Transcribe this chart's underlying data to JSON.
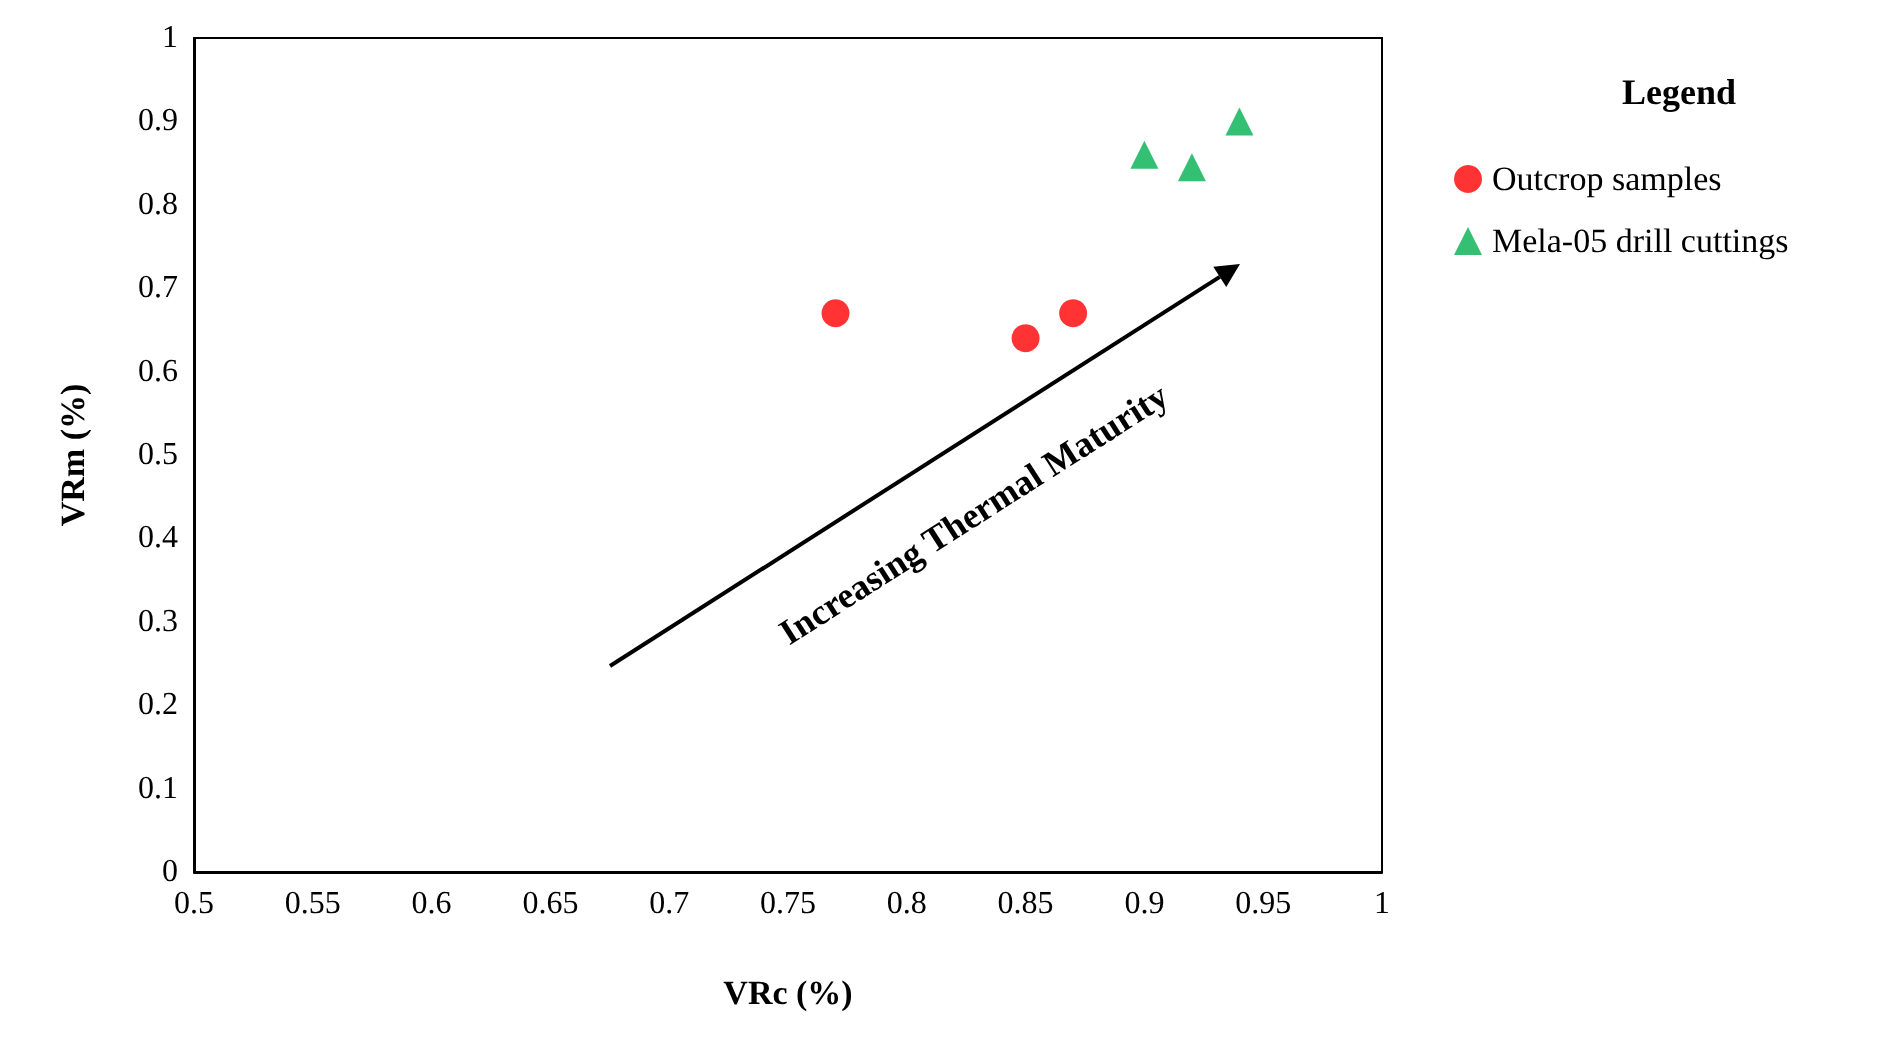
{
  "chart_data": {
    "type": "scatter",
    "xlabel": "VRc (%)",
    "ylabel": "VRm (%)",
    "legend_title": "Legend",
    "legend": "right",
    "grid": false,
    "xlim": [
      0.5,
      1
    ],
    "xticks": [
      0.5,
      0.55,
      0.6,
      0.65,
      0.7,
      0.75,
      0.8,
      0.85,
      0.9,
      0.95,
      1
    ],
    "ylim": [
      0,
      1
    ],
    "yticks": [
      0,
      0.1,
      0.2,
      0.3,
      0.4,
      0.5,
      0.6,
      0.7,
      0.8,
      0.9,
      1
    ],
    "annotations": [
      "Increasing Thermal Maturity"
    ],
    "series": [
      {
        "name": "Outcrop samples",
        "color": "#ff0000",
        "marker": "circle",
        "x": [
          0.77,
          0.85,
          0.87
        ],
        "values": [
          0.67,
          0.64,
          0.67
        ]
      },
      {
        "name": "Mela-05 drill cuttings",
        "color": "#00b050",
        "marker": "triangle",
        "x": [
          0.9,
          0.92,
          0.94
        ],
        "values": [
          0.86,
          0.845,
          0.9
        ]
      }
    ]
  }
}
